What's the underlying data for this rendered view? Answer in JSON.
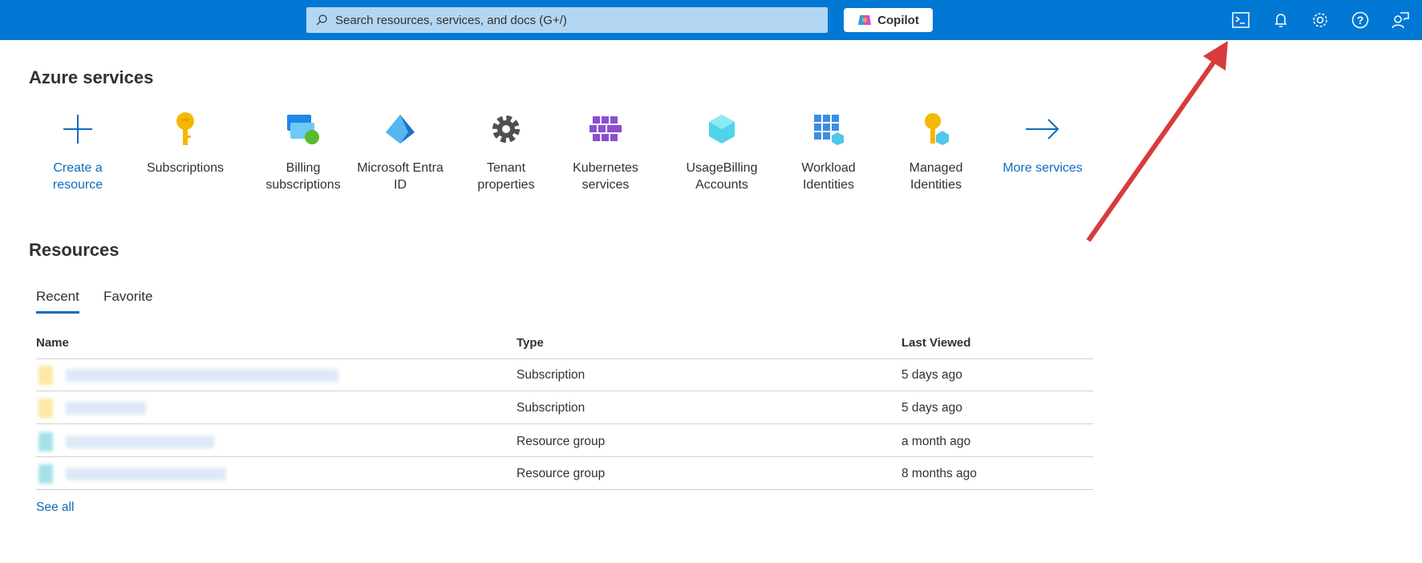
{
  "topbar": {
    "search_placeholder": "Search resources, services, and docs (G+/)",
    "copilot_label": "Copilot",
    "icons": [
      "cloud-shell-icon",
      "notifications-icon",
      "settings-icon",
      "help-icon",
      "feedback-icon"
    ]
  },
  "services": {
    "title": "Azure services",
    "items": [
      {
        "label1": "Create a",
        "label2": "resource",
        "icon": "plus-icon"
      },
      {
        "label1": "Subscriptions",
        "label2": "",
        "icon": "key-icon"
      },
      {
        "label1": "Billing",
        "label2": "subscriptions",
        "icon": "billing-icon"
      },
      {
        "label1": "Microsoft Entra",
        "label2": "ID",
        "icon": "entra-icon"
      },
      {
        "label1": "Tenant",
        "label2": "properties",
        "icon": "gear-icon"
      },
      {
        "label1": "Kubernetes",
        "label2": "services",
        "icon": "kubernetes-icon"
      },
      {
        "label1": "UsageBilling",
        "label2": "Accounts",
        "icon": "cube-icon"
      },
      {
        "label1": "Workload",
        "label2": "Identities",
        "icon": "workload-icon"
      },
      {
        "label1": "Managed",
        "label2": "Identities",
        "icon": "managed-identity-icon"
      },
      {
        "label1": "More services",
        "label2": "",
        "icon": "arrow-right-icon"
      }
    ]
  },
  "resources": {
    "title": "Resources",
    "tabs": [
      "Recent",
      "Favorite"
    ],
    "columns": [
      "Name",
      "Type",
      "Last Viewed"
    ],
    "rows": [
      {
        "type": "Subscription",
        "last": "5 days ago"
      },
      {
        "type": "Subscription",
        "last": "5 days ago"
      },
      {
        "type": "Resource group",
        "last": "a month ago"
      },
      {
        "type": "Resource group",
        "last": "8 months ago"
      }
    ],
    "see_all": "See all"
  },
  "colors": {
    "accent": "#0078d4",
    "link": "#0f6cbd",
    "annotation": "#d83b3b"
  }
}
